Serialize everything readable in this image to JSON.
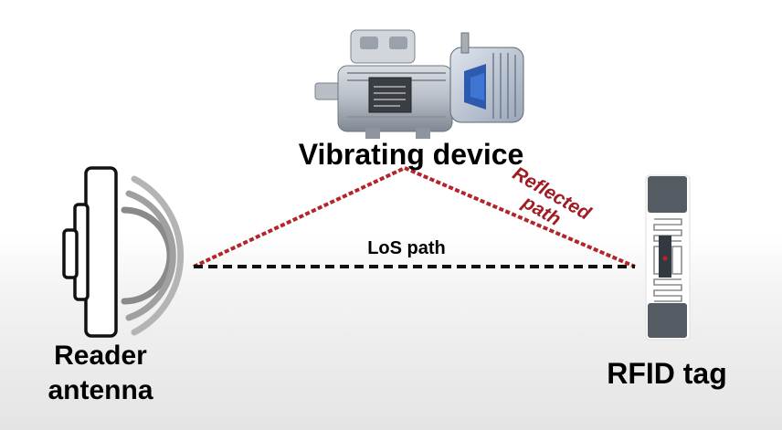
{
  "labels": {
    "device": "Vibrating device",
    "reader_line1": "Reader",
    "reader_line2": "antenna",
    "rfid": "RFID tag",
    "los_path": "LoS path",
    "reflected_line1": "Reflected",
    "reflected_line2": "path"
  },
  "colors": {
    "reflected_path": "#b3242b",
    "los_path": "#111111",
    "label_text": "#000000",
    "reflected_label": "#a01c22"
  }
}
